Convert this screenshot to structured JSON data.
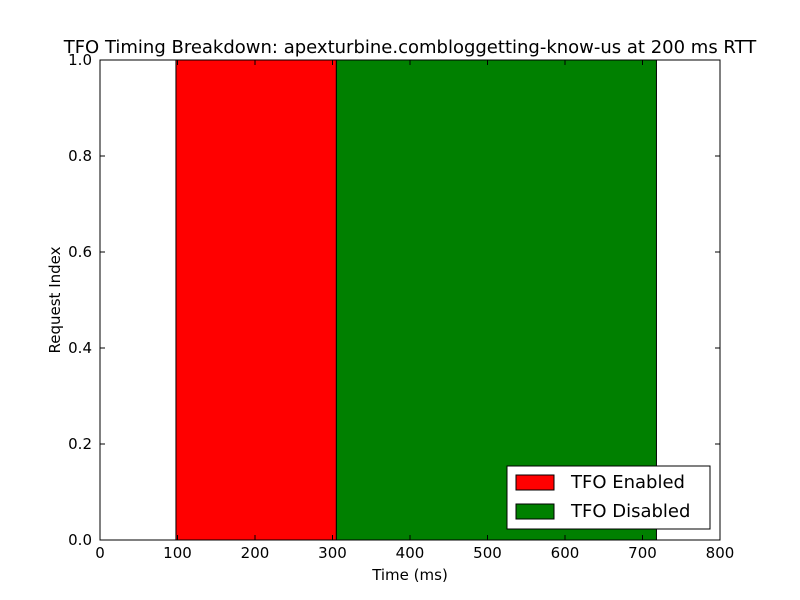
{
  "chart_data": {
    "type": "bar",
    "title": "TFO Timing Breakdown: apexturbine.combloggetting-know-us at 200 ms RTT",
    "xlabel": "Time (ms)",
    "ylabel": "Request Index",
    "xlim": [
      0,
      800
    ],
    "ylim": [
      0,
      1
    ],
    "xticks": [
      0,
      100,
      200,
      300,
      400,
      500,
      600,
      700,
      800
    ],
    "xtick_labels": [
      "0",
      "100",
      "200",
      "300",
      "400",
      "500",
      "600",
      "700",
      "800"
    ],
    "yticks": [
      0,
      0.2,
      0.4,
      0.6,
      0.8,
      1
    ],
    "ytick_labels": [
      "0.0",
      "0.2",
      "0.4",
      "0.6",
      "0.8",
      "1.0"
    ],
    "grid": false,
    "legend_position": "lower-right",
    "series": [
      {
        "name": "TFO Enabled",
        "color": "#ff0000",
        "start": 98,
        "end": 305,
        "y_bottom": 0,
        "y_top": 1
      },
      {
        "name": "TFO Disabled",
        "color": "#008000",
        "start": 305,
        "end": 718,
        "y_bottom": 0,
        "y_top": 1
      }
    ]
  }
}
